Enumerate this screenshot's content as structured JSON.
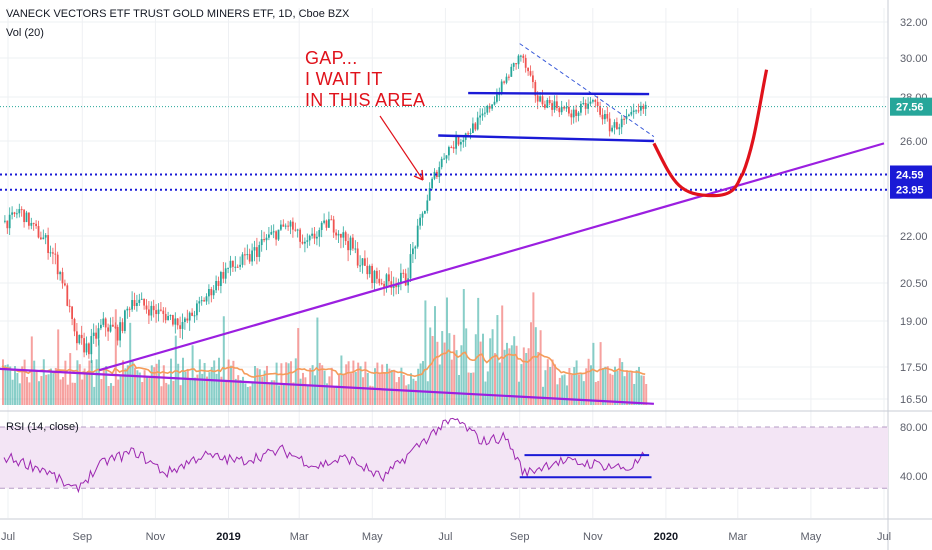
{
  "header": {
    "title": "VANECK VECTORS ETF TRUST GOLD MINERS ETF, 1D, Cboe BZX",
    "volume_label": "Vol (20)",
    "rsi_label": "RSI (14, close)"
  },
  "annotation": {
    "line1": "GAP...",
    "line2": "I WAIT IT",
    "line3": "IN THIS AREA"
  },
  "colors": {
    "up": "#26a69a",
    "down": "#ef5350",
    "trendline": "#9b1fe0",
    "levels": "#1a1ad6",
    "annotation": "#e0121b",
    "price_dotted": "#26a69a",
    "volume_ma": "#f59c5a",
    "rsi": "#9c27b0",
    "rsi_band": "#f3e5f5"
  },
  "chart_data": [
    {
      "type": "candlestick",
      "title": "VANECK VECTORS ETF TRUST GOLD MINERS ETF, 1D, Cboe BZX",
      "y_ticks": [
        32.0,
        30.0,
        28.0,
        26.0,
        22.0,
        20.5,
        19.0,
        17.5,
        16.5
      ],
      "ylim": [
        16.2,
        32.6
      ],
      "x_ticks": [
        "Jul",
        "Sep",
        "Nov",
        "2019",
        "Mar",
        "May",
        "Jul",
        "Sep",
        "Nov",
        "2020",
        "Mar",
        "May",
        "Jul"
      ],
      "current_price": "27.56",
      "level_labels": [
        "24.59",
        "23.95"
      ],
      "levels": [
        24.59,
        23.95
      ],
      "close_path": [
        {
          "d": "2018-07-01",
          "v": 22.6
        },
        {
          "d": "2018-07-10",
          "v": 23.1
        },
        {
          "d": "2018-07-22",
          "v": 22.3
        },
        {
          "d": "2018-08-05",
          "v": 21.6
        },
        {
          "d": "2018-08-15",
          "v": 20.6
        },
        {
          "d": "2018-08-25",
          "v": 18.4
        },
        {
          "d": "2018-09-05",
          "v": 18.1
        },
        {
          "d": "2018-09-18",
          "v": 18.9
        },
        {
          "d": "2018-10-01",
          "v": 18.6
        },
        {
          "d": "2018-10-12",
          "v": 19.9
        },
        {
          "d": "2018-10-25",
          "v": 19.5
        },
        {
          "d": "2018-11-10",
          "v": 19.2
        },
        {
          "d": "2018-11-25",
          "v": 18.9
        },
        {
          "d": "2018-12-10",
          "v": 19.8
        },
        {
          "d": "2018-12-28",
          "v": 20.9
        },
        {
          "d": "2019-01-15",
          "v": 21.2
        },
        {
          "d": "2019-02-01",
          "v": 21.9
        },
        {
          "d": "2019-02-20",
          "v": 22.5
        },
        {
          "d": "2019-03-05",
          "v": 21.6
        },
        {
          "d": "2019-03-25",
          "v": 22.6
        },
        {
          "d": "2019-04-10",
          "v": 21.8
        },
        {
          "d": "2019-04-25",
          "v": 20.9
        },
        {
          "d": "2019-05-10",
          "v": 20.5
        },
        {
          "d": "2019-05-28",
          "v": 20.6
        },
        {
          "d": "2019-06-05",
          "v": 21.8
        },
        {
          "d": "2019-06-20",
          "v": 24.4
        },
        {
          "d": "2019-07-01",
          "v": 25.6
        },
        {
          "d": "2019-07-15",
          "v": 26.2
        },
        {
          "d": "2019-08-01",
          "v": 27.1
        },
        {
          "d": "2019-08-15",
          "v": 28.4
        },
        {
          "d": "2019-09-01",
          "v": 30.2
        },
        {
          "d": "2019-09-15",
          "v": 27.9
        },
        {
          "d": "2019-10-01",
          "v": 27.6
        },
        {
          "d": "2019-10-15",
          "v": 27.2
        },
        {
          "d": "2019-11-01",
          "v": 27.8
        },
        {
          "d": "2019-11-15",
          "v": 26.6
        },
        {
          "d": "2019-12-01",
          "v": 27.0
        },
        {
          "d": "2019-12-15",
          "v": 27.56
        }
      ],
      "trendlines": [
        {
          "name": "rising support",
          "from": {
            "d": "2018-09-15",
            "v": 17.4
          },
          "to": {
            "d": "2020-07-01",
            "v": 25.9
          }
        },
        {
          "name": "falling line",
          "from": {
            "d": "2018-06-20",
            "v": 17.45
          },
          "to": {
            "d": "2019-12-22",
            "v": 16.35
          }
        },
        {
          "name": "falling wedge",
          "from": {
            "d": "2019-09-01",
            "v": 30.8
          },
          "to": {
            "d": "2019-12-22",
            "v": 26.2
          }
        }
      ],
      "channel": [
        {
          "from": {
            "d": "2019-07-20",
            "v": 28.2
          },
          "to": {
            "d": "2019-12-18",
            "v": 28.15
          }
        },
        {
          "from": {
            "d": "2019-06-25",
            "v": 26.25
          },
          "to": {
            "d": "2019-12-22",
            "v": 26.0
          }
        }
      ],
      "projection": [
        {
          "d": "2019-12-22",
          "v": 25.9
        },
        {
          "d": "2020-01-20",
          "v": 24.0
        },
        {
          "d": "2020-02-10",
          "v": 23.7
        },
        {
          "d": "2020-03-05",
          "v": 24.6
        },
        {
          "d": "2020-03-25",
          "v": 29.4
        }
      ]
    },
    {
      "type": "line",
      "title": "RSI (14, close)",
      "y_ticks": [
        80.0,
        40.0
      ],
      "ylim": [
        10,
        95
      ],
      "bands": [
        30,
        80
      ],
      "channel": [
        {
          "from": {
            "d": "2019-09-05",
            "v": 57
          },
          "to": {
            "d": "2019-12-18",
            "v": 57
          }
        },
        {
          "from": {
            "d": "2019-09-01",
            "v": 39
          },
          "to": {
            "d": "2019-12-20",
            "v": 39
          }
        }
      ],
      "series": [
        {
          "values_path": [
            {
              "d": "2018-07-01",
              "v": 55
            },
            {
              "d": "2018-08-01",
              "v": 45
            },
            {
              "d": "2018-08-25",
              "v": 28
            },
            {
              "d": "2018-09-20",
              "v": 52
            },
            {
              "d": "2018-10-15",
              "v": 60
            },
            {
              "d": "2018-11-10",
              "v": 42
            },
            {
              "d": "2018-12-10",
              "v": 57
            },
            {
              "d": "2019-01-10",
              "v": 52
            },
            {
              "d": "2019-02-15",
              "v": 61
            },
            {
              "d": "2019-03-15",
              "v": 48
            },
            {
              "d": "2019-04-10",
              "v": 55
            },
            {
              "d": "2019-05-10",
              "v": 38
            },
            {
              "d": "2019-06-05",
              "v": 62
            },
            {
              "d": "2019-06-25",
              "v": 79
            },
            {
              "d": "2019-07-10",
              "v": 86
            },
            {
              "d": "2019-08-01",
              "v": 68
            },
            {
              "d": "2019-08-20",
              "v": 72
            },
            {
              "d": "2019-09-05",
              "v": 42
            },
            {
              "d": "2019-10-01",
              "v": 52
            },
            {
              "d": "2019-11-01",
              "v": 50
            },
            {
              "d": "2019-12-01",
              "v": 46
            },
            {
              "d": "2019-12-15",
              "v": 57
            }
          ]
        }
      ]
    }
  ]
}
